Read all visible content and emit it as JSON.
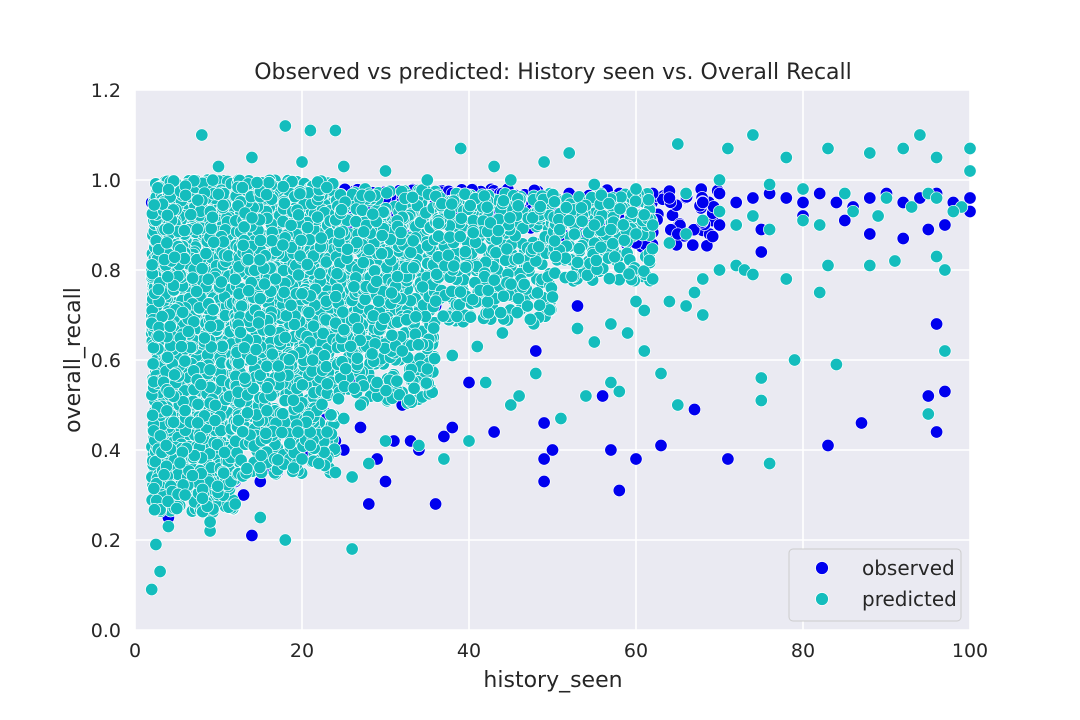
{
  "chart_data": {
    "type": "scatter",
    "title": "Observed vs predicted: History seen vs. Overall Recall",
    "xlabel": "history_seen",
    "ylabel": "overall_recall",
    "xlim": [
      0,
      100
    ],
    "ylim": [
      0,
      1.2
    ],
    "xticks": [
      "0",
      "20",
      "40",
      "60",
      "80",
      "100"
    ],
    "yticks": [
      "0.0",
      "0.2",
      "0.4",
      "0.6",
      "0.8",
      "1.0",
      "1.2"
    ],
    "grid": true,
    "background_color": "#eaeaf2",
    "legend_position": "lower-right",
    "series": [
      {
        "name": "observed",
        "color": "#0000ee",
        "points": [
          [
            2,
            0.95
          ],
          [
            3,
            0.5
          ],
          [
            4,
            0.25
          ],
          [
            5,
            0.35
          ],
          [
            6,
            0.7
          ],
          [
            7,
            0.45
          ],
          [
            8,
            0.6
          ],
          [
            9,
            0.38
          ],
          [
            10,
            0.52
          ],
          [
            12,
            0.33
          ],
          [
            13,
            0.3
          ],
          [
            14,
            0.21
          ],
          [
            15,
            0.33
          ],
          [
            16,
            0.36
          ],
          [
            17,
            0.35
          ],
          [
            19,
            0.37
          ],
          [
            20,
            0.4
          ],
          [
            21,
            0.39
          ],
          [
            22,
            0.45
          ],
          [
            23,
            0.48
          ],
          [
            24,
            0.42
          ],
          [
            25,
            0.4
          ],
          [
            26,
            0.55
          ],
          [
            27,
            0.45
          ],
          [
            28,
            0.28
          ],
          [
            29,
            0.38
          ],
          [
            30,
            0.33
          ],
          [
            31,
            0.42
          ],
          [
            32,
            0.5
          ],
          [
            33,
            0.42
          ],
          [
            34,
            0.4
          ],
          [
            36,
            0.28
          ],
          [
            36,
            0.72
          ],
          [
            37,
            0.43
          ],
          [
            38,
            0.45
          ],
          [
            40,
            0.55
          ],
          [
            43,
            0.44
          ],
          [
            45,
            0.5
          ],
          [
            48,
            0.62
          ],
          [
            49,
            0.46
          ],
          [
            49,
            0.38
          ],
          [
            49,
            0.33
          ],
          [
            50,
            0.4
          ],
          [
            53,
            0.72
          ],
          [
            56,
            0.52
          ],
          [
            57,
            0.4
          ],
          [
            58,
            0.31
          ],
          [
            60,
            0.38
          ],
          [
            63,
            0.41
          ],
          [
            67,
            0.49
          ],
          [
            71,
            0.38
          ],
          [
            75,
            0.84
          ],
          [
            83,
            0.41
          ],
          [
            87,
            0.46
          ],
          [
            95,
            0.52
          ],
          [
            96,
            0.44
          ],
          [
            96,
            0.68
          ],
          [
            97,
            0.53
          ],
          [
            30,
            0.96
          ],
          [
            32,
            0.95
          ],
          [
            34,
            0.97
          ],
          [
            36,
            0.95
          ],
          [
            38,
            0.97
          ],
          [
            40,
            0.94
          ],
          [
            42,
            0.96
          ],
          [
            44,
            0.97
          ],
          [
            46,
            0.95
          ],
          [
            48,
            0.96
          ],
          [
            50,
            0.93
          ],
          [
            52,
            0.97
          ],
          [
            54,
            0.95
          ],
          [
            56,
            0.96
          ],
          [
            58,
            0.97
          ],
          [
            60,
            0.95
          ],
          [
            62,
            0.97
          ],
          [
            64,
            0.96
          ],
          [
            66,
            0.97
          ],
          [
            68,
            0.95
          ],
          [
            70,
            0.97
          ],
          [
            72,
            0.95
          ],
          [
            74,
            0.96
          ],
          [
            76,
            0.97
          ],
          [
            78,
            0.96
          ],
          [
            80,
            0.95
          ],
          [
            82,
            0.97
          ],
          [
            84,
            0.95
          ],
          [
            86,
            0.94
          ],
          [
            88,
            0.96
          ],
          [
            90,
            0.97
          ],
          [
            92,
            0.95
          ],
          [
            94,
            0.96
          ],
          [
            96,
            0.97
          ],
          [
            98,
            0.95
          ],
          [
            100,
            0.96
          ],
          [
            40,
            0.9
          ],
          [
            45,
            0.88
          ],
          [
            50,
            0.87
          ],
          [
            55,
            0.89
          ],
          [
            60,
            0.86
          ],
          [
            65,
            0.88
          ],
          [
            70,
            0.9
          ],
          [
            75,
            0.89
          ],
          [
            80,
            0.92
          ],
          [
            85,
            0.91
          ],
          [
            88,
            0.88
          ],
          [
            92,
            0.87
          ],
          [
            95,
            0.89
          ],
          [
            97,
            0.9
          ],
          [
            100,
            0.93
          ]
        ]
      },
      {
        "name": "predicted",
        "color": "#14bdbd",
        "points": [
          [
            2,
            0.09
          ],
          [
            2.5,
            0.19
          ],
          [
            3,
            0.13
          ],
          [
            4,
            0.23
          ],
          [
            5,
            0.27
          ],
          [
            6,
            0.3
          ],
          [
            9,
            0.22
          ],
          [
            9,
            0.24
          ],
          [
            12,
            0.28
          ],
          [
            15,
            0.25
          ],
          [
            18,
            0.2
          ],
          [
            26,
            0.18
          ],
          [
            19,
            0.36
          ],
          [
            24,
            0.35
          ],
          [
            26,
            0.34
          ],
          [
            28,
            0.37
          ],
          [
            30,
            0.42
          ],
          [
            34,
            0.41
          ],
          [
            37,
            0.38
          ],
          [
            40,
            0.42
          ],
          [
            42,
            0.55
          ],
          [
            45,
            0.5
          ],
          [
            46,
            0.52
          ],
          [
            48,
            0.57
          ],
          [
            51,
            0.47
          ],
          [
            54,
            0.52
          ],
          [
            57,
            0.55
          ],
          [
            58,
            0.53
          ],
          [
            59,
            0.66
          ],
          [
            60,
            0.73
          ],
          [
            61,
            0.62
          ],
          [
            63,
            0.57
          ],
          [
            65,
            0.5
          ],
          [
            67,
            0.75
          ],
          [
            68,
            0.7
          ],
          [
            70,
            0.8
          ],
          [
            72,
            0.81
          ],
          [
            73,
            0.8
          ],
          [
            74,
            0.79
          ],
          [
            75,
            0.51
          ],
          [
            75,
            0.56
          ],
          [
            76,
            0.37
          ],
          [
            78,
            0.78
          ],
          [
            79,
            0.6
          ],
          [
            82,
            0.75
          ],
          [
            83,
            0.81
          ],
          [
            84,
            0.59
          ],
          [
            88,
            0.81
          ],
          [
            91,
            0.82
          ],
          [
            95,
            0.48
          ],
          [
            96,
            0.83
          ],
          [
            97,
            0.62
          ],
          [
            97,
            0.8
          ],
          [
            8,
            1.1
          ],
          [
            18,
            1.12
          ],
          [
            21,
            1.11
          ],
          [
            24,
            1.11
          ],
          [
            39,
            1.07
          ],
          [
            43,
            1.03
          ],
          [
            49,
            1.04
          ],
          [
            52,
            1.06
          ],
          [
            65,
            1.08
          ],
          [
            71,
            1.07
          ],
          [
            74,
            1.1
          ],
          [
            78,
            1.05
          ],
          [
            83,
            1.07
          ],
          [
            88,
            1.06
          ],
          [
            92,
            1.07
          ],
          [
            94,
            1.1
          ],
          [
            96,
            1.05
          ],
          [
            100,
            1.07
          ],
          [
            100,
            1.02
          ],
          [
            10,
            1.03
          ],
          [
            14,
            1.05
          ],
          [
            20,
            1.04
          ],
          [
            25,
            1.03
          ],
          [
            30,
            1.02
          ],
          [
            35,
            1.0
          ],
          [
            45,
            1.0
          ],
          [
            55,
            0.99
          ],
          [
            60,
            0.98
          ],
          [
            66,
            0.97
          ],
          [
            70,
            1.0
          ],
          [
            76,
            0.99
          ],
          [
            80,
            0.98
          ],
          [
            85,
            0.97
          ],
          [
            90,
            0.96
          ],
          [
            95,
            0.97
          ],
          [
            99,
            0.94
          ],
          [
            52,
            0.91
          ],
          [
            55,
            0.9
          ],
          [
            57,
            0.89
          ],
          [
            60,
            0.88
          ],
          [
            62,
            0.9
          ],
          [
            64,
            0.86
          ],
          [
            66,
            0.88
          ],
          [
            68,
            0.91
          ],
          [
            70,
            0.93
          ],
          [
            72,
            0.9
          ],
          [
            74,
            0.92
          ],
          [
            76,
            0.89
          ],
          [
            80,
            0.91
          ],
          [
            82,
            0.9
          ],
          [
            86,
            0.93
          ],
          [
            89,
            0.92
          ],
          [
            93,
            0.94
          ],
          [
            96,
            0.96
          ],
          [
            98,
            0.93
          ],
          [
            62,
            0.78
          ],
          [
            64,
            0.73
          ],
          [
            66,
            0.72
          ],
          [
            68,
            0.78
          ],
          [
            61,
            0.71
          ],
          [
            57,
            0.68
          ],
          [
            55,
            0.64
          ],
          [
            53,
            0.67
          ],
          [
            50,
            0.74
          ],
          [
            47,
            0.72
          ],
          [
            44,
            0.66
          ],
          [
            41,
            0.63
          ],
          [
            38,
            0.61
          ],
          [
            35,
            0.58
          ],
          [
            32,
            0.62
          ],
          [
            29,
            0.55
          ],
          [
            27,
            0.5
          ],
          [
            25,
            0.47
          ],
          [
            23,
            0.44
          ],
          [
            21,
            0.41
          ],
          [
            20,
            0.38
          ],
          [
            22,
            0.37
          ]
        ]
      }
    ],
    "dense_clusters": [
      {
        "series": "predicted",
        "x": [
          2,
          12
        ],
        "y": [
          0.26,
          1.0
        ],
        "count": 1900
      },
      {
        "series": "predicted",
        "x": [
          12,
          24
        ],
        "y": [
          0.34,
          1.0
        ],
        "count": 1100
      },
      {
        "series": "predicted",
        "x": [
          24,
          36
        ],
        "y": [
          0.5,
          0.98
        ],
        "count": 650
      },
      {
        "series": "predicted",
        "x": [
          36,
          50
        ],
        "y": [
          0.68,
          0.97
        ],
        "count": 380
      },
      {
        "series": "predicted",
        "x": [
          50,
          62
        ],
        "y": [
          0.77,
          0.97
        ],
        "count": 200
      },
      {
        "series": "observed",
        "x": [
          24,
          50
        ],
        "y": [
          0.88,
          0.98
        ],
        "count": 220
      },
      {
        "series": "observed",
        "x": [
          50,
          70
        ],
        "y": [
          0.85,
          0.98
        ],
        "count": 90
      }
    ]
  }
}
